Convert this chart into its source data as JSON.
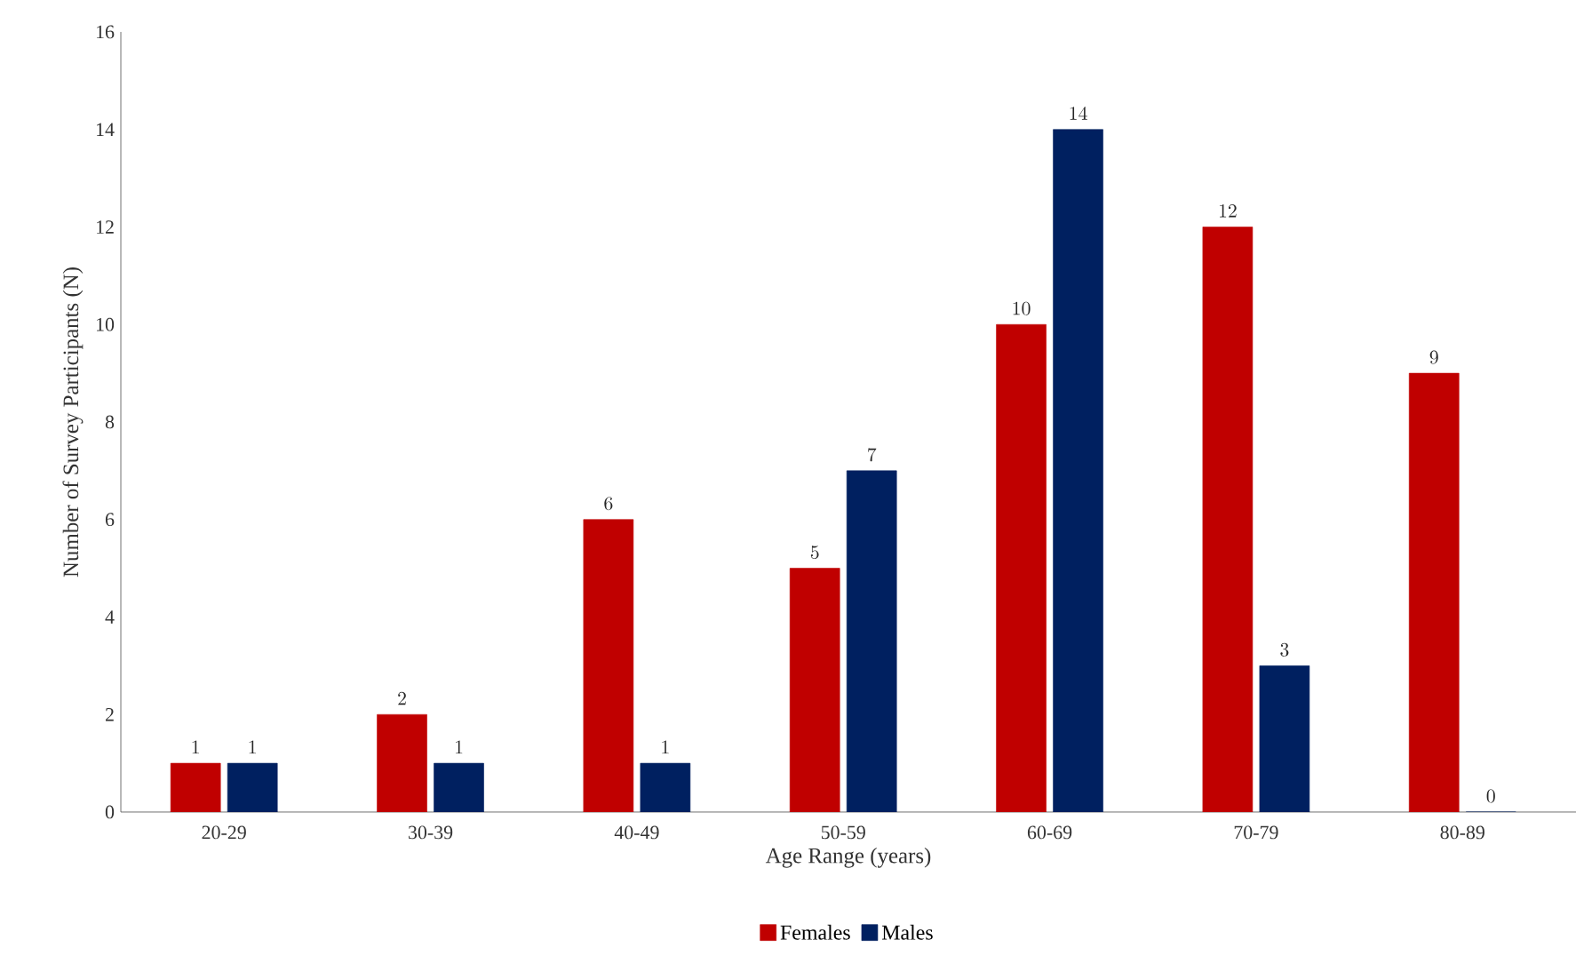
{
  "chart_data": {
    "type": "bar",
    "xlabel": "Age Range (years)",
    "ylabel": "Number of Survey Participants (N)",
    "categories": [
      "20-29",
      "30-39",
      "40-49",
      "50-59",
      "60-69",
      "70-79",
      "80-89"
    ],
    "series": [
      {
        "name": "Females",
        "color": "#c00000",
        "values": [
          1,
          2,
          6,
          5,
          10,
          12,
          9
        ]
      },
      {
        "name": "Males",
        "color": "#002060",
        "values": [
          1,
          1,
          1,
          7,
          14,
          3,
          0
        ]
      }
    ],
    "ylim": [
      0,
      16
    ],
    "yticks": [
      0,
      2,
      4,
      6,
      8,
      10,
      12,
      14,
      16
    ],
    "data_labels": true,
    "legend": "bottom",
    "grid": false
  }
}
